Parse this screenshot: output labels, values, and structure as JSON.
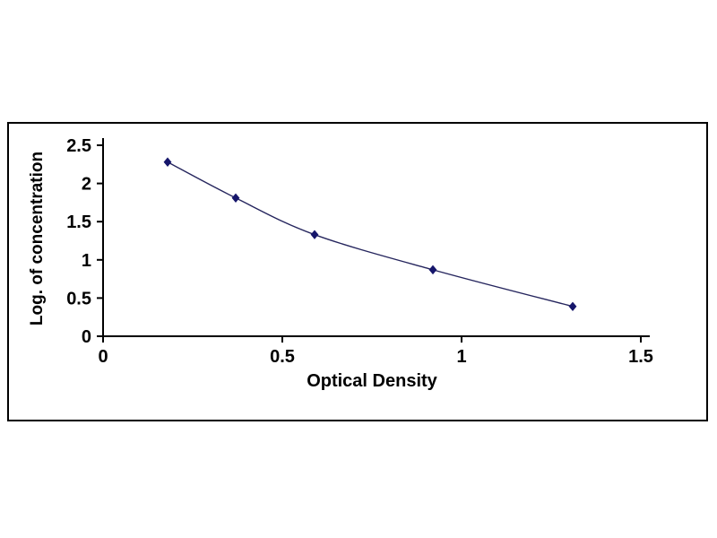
{
  "chart_data": {
    "type": "line",
    "title": "",
    "xlabel": "Optical Density",
    "ylabel": "Log. of concentration",
    "x": [
      0.18,
      0.37,
      0.59,
      0.92,
      1.31
    ],
    "y": [
      2.28,
      1.81,
      1.33,
      0.87,
      0.39
    ],
    "xlim": [
      0,
      1.5
    ],
    "ylim": [
      0,
      2.5
    ],
    "x_ticks": [
      0,
      0.5,
      1,
      1.5
    ],
    "x_tick_labels": [
      "0",
      "0.5",
      "1",
      "1.5"
    ],
    "y_ticks": [
      0,
      0.5,
      1,
      1.5,
      2,
      2.5
    ],
    "y_tick_labels": [
      "0",
      "0.5",
      "1",
      "1.5",
      "2",
      "2.5"
    ],
    "grid": false,
    "legend": "none",
    "marker": "diamond",
    "colors": {
      "line": "#26265e",
      "marker": "#16166b",
      "axis": "#000000",
      "frame_border": "#000000",
      "background": "#ffffff"
    }
  }
}
